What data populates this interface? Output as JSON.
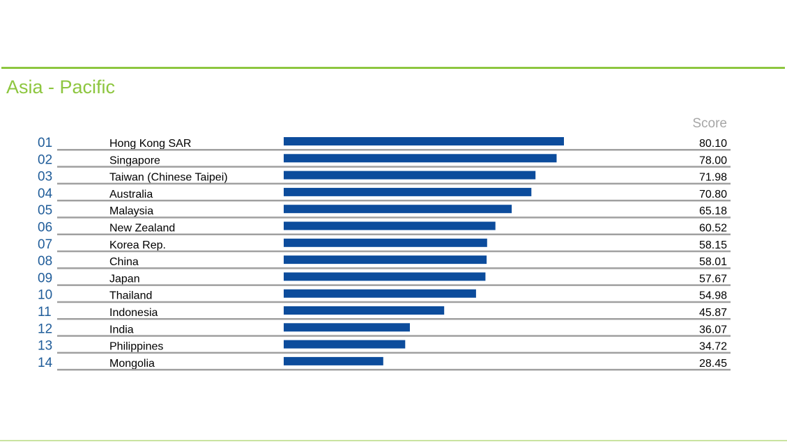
{
  "page": {
    "title": "Asia - Pacific",
    "score_header": "Score"
  },
  "colors": {
    "accent_green": "#8dc63f",
    "bar_blue": "#0c4c9c",
    "rank_blue": "#1f5c99",
    "row_rule": "#a0a0a0"
  },
  "chart_data": {
    "type": "bar",
    "orientation": "horizontal",
    "ranks": [
      "01",
      "02",
      "03",
      "04",
      "05",
      "06",
      "07",
      "08",
      "09",
      "10",
      "11",
      "12",
      "13",
      "14"
    ],
    "categories": [
      "Hong Kong SAR",
      "Singapore",
      "Taiwan (Chinese Taipei)",
      "Australia",
      "Malaysia",
      "New Zealand",
      "Korea Rep.",
      "China",
      "Japan",
      "Thailand",
      "Indonesia",
      "India",
      "Philippines",
      "Mongolia"
    ],
    "values": [
      80.1,
      78.0,
      71.98,
      70.8,
      65.18,
      60.52,
      58.15,
      58.01,
      57.67,
      54.98,
      45.87,
      36.07,
      34.72,
      28.45
    ],
    "value_labels": [
      "80.10",
      "78.00",
      "71.98",
      "70.80",
      "65.18",
      "60.52",
      "58.15",
      "58.01",
      "57.67",
      "54.98",
      "45.87",
      "36.07",
      "34.72",
      "28.45"
    ],
    "xlim": [
      0,
      100
    ],
    "grid": false,
    "legend": "none"
  }
}
